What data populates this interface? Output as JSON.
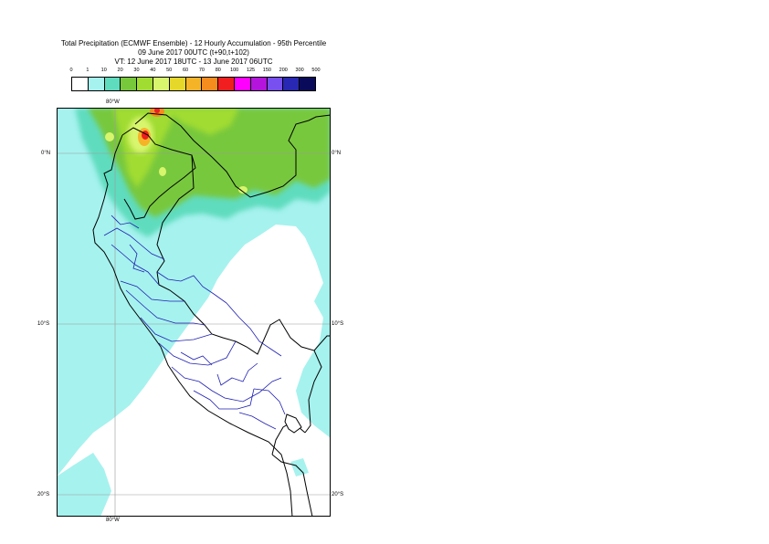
{
  "titles": {
    "line1": "Total Precipitation (ECMWF Ensemble) - 12 Hourly Accumulation - 95th Percentile",
    "line2": "09 June 2017 00UTC (t+90,t+102)",
    "line3": "VT: 12 June 2017 18UTC - 13 June 2017 06UTC"
  },
  "legend": {
    "ticks": [
      "0",
      "1",
      "10",
      "20",
      "30",
      "40",
      "50",
      "60",
      "70",
      "80",
      "100",
      "125",
      "150",
      "200",
      "300",
      "500"
    ],
    "colors": [
      "#ffffff",
      "#a6f2ee",
      "#5fdcbe",
      "#78c83c",
      "#a0dc32",
      "#d8f56e",
      "#e6d82a",
      "#f5b428",
      "#f58c1e",
      "#f01e1e",
      "#ff00ff",
      "#b414dc",
      "#7850f0",
      "#2828b4",
      "#0a0a5a"
    ]
  },
  "axes": {
    "lon_top": "80°W",
    "lon_bottom": "80°W",
    "lat_left": [
      "0°N",
      "10°S",
      "20°S"
    ],
    "lat_right": [
      "0°N",
      "10°S",
      "20°S"
    ]
  }
}
